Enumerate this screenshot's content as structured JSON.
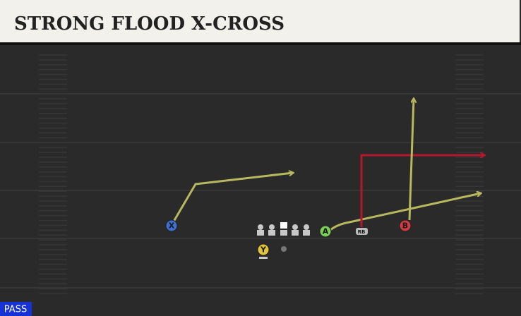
{
  "header": {
    "title": "STRONG FLOOD X-CROSS"
  },
  "players": [
    {
      "label": "X"
    },
    {
      "label": "Y"
    },
    {
      "label": "A"
    },
    {
      "label": "B"
    },
    {
      "label": "RB"
    }
  ],
  "badge": "PASS"
}
